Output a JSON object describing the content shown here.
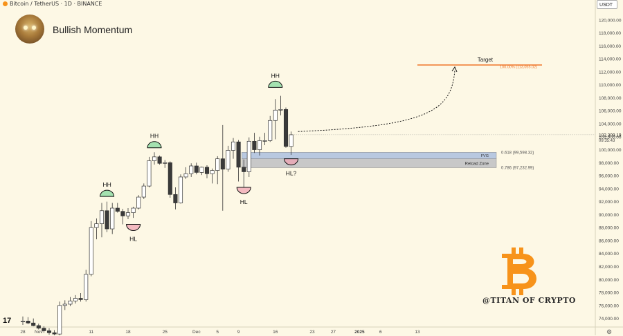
{
  "header": {
    "symbol": "Bitcoin / TetherUS · 1D · BINANCE",
    "currency_button": "USDT"
  },
  "profile": {
    "name": "Bullish Momentum"
  },
  "watermark": "@TITAN OF CRYPTO",
  "colors": {
    "background": "#fdf8e5",
    "candle_up": "#ffffff",
    "candle_down": "#3a3a3a",
    "target_line": "#f0762a",
    "fvg_zone": "#b8c8e0",
    "reload_zone": "#c8c8c8",
    "hh_arc": "#7ed89a",
    "hl_arc": "#f0a0b0",
    "bitcoin_logo": "#f7931a"
  },
  "chart_data": {
    "type": "candlestick",
    "yaxis": {
      "min": 73000,
      "max": 122000,
      "ticks": [
        "120,000.00",
        "118,000.00",
        "116,000.00",
        "114,000.00",
        "112,000.00",
        "110,000.00",
        "108,000.00",
        "106,000.00",
        "104,000.00",
        "102,000.00",
        "100,000.00",
        "98,000.00",
        "96,000.00",
        "94,000.00",
        "92,000.00",
        "90,000.00",
        "88,000.00",
        "86,000.00",
        "84,000.00",
        "82,000.00",
        "80,000.00",
        "78,000.00",
        "76,000.00",
        "74,000.00"
      ],
      "current_price": "102,309.19",
      "countdown": "09:35:43"
    },
    "xaxis": {
      "ticks": [
        {
          "label": "28",
          "i": 0
        },
        {
          "label": "Nov",
          "i": 3
        },
        {
          "label": "5",
          "i": 7
        },
        {
          "label": "11",
          "i": 13
        },
        {
          "label": "18",
          "i": 20
        },
        {
          "label": "25",
          "i": 27
        },
        {
          "label": "Dec",
          "i": 33
        },
        {
          "label": "5",
          "i": 37
        },
        {
          "label": "9",
          "i": 41
        },
        {
          "label": "16",
          "i": 48
        },
        {
          "label": "23",
          "i": 55
        },
        {
          "label": "27",
          "i": 59
        },
        {
          "label": "2025",
          "i": 64
        },
        {
          "label": "6",
          "i": 68
        },
        {
          "label": "13",
          "i": 75
        }
      ]
    },
    "candles": [
      {
        "o": 73500,
        "h": 74300,
        "l": 73000,
        "c": 73600
      },
      {
        "o": 73600,
        "h": 74200,
        "l": 73100,
        "c": 73300
      },
      {
        "o": 73300,
        "h": 74000,
        "l": 72800,
        "c": 72900
      },
      {
        "o": 72900,
        "h": 73200,
        "l": 72300,
        "c": 72500
      },
      {
        "o": 72500,
        "h": 72800,
        "l": 71800,
        "c": 72100
      },
      {
        "o": 72100,
        "h": 72500,
        "l": 71500,
        "c": 71800
      },
      {
        "o": 71800,
        "h": 72200,
        "l": 71300,
        "c": 71600
      },
      {
        "o": 71600,
        "h": 76600,
        "l": 71400,
        "c": 76000
      },
      {
        "o": 76000,
        "h": 76800,
        "l": 75300,
        "c": 76200
      },
      {
        "o": 76200,
        "h": 77300,
        "l": 75900,
        "c": 76700
      },
      {
        "o": 76700,
        "h": 77600,
        "l": 76300,
        "c": 77100
      },
      {
        "o": 77100,
        "h": 77900,
        "l": 76600,
        "c": 76900
      },
      {
        "o": 76900,
        "h": 81500,
        "l": 76600,
        "c": 80800
      },
      {
        "o": 80800,
        "h": 89000,
        "l": 80500,
        "c": 88000
      },
      {
        "o": 88000,
        "h": 89400,
        "l": 86200,
        "c": 88600
      },
      {
        "o": 88600,
        "h": 91800,
        "l": 86500,
        "c": 90600
      },
      {
        "o": 90600,
        "h": 92000,
        "l": 87300,
        "c": 87800
      },
      {
        "o": 87800,
        "h": 91800,
        "l": 87000,
        "c": 91000
      },
      {
        "o": 91000,
        "h": 91800,
        "l": 90300,
        "c": 90500
      },
      {
        "o": 90500,
        "h": 90900,
        "l": 88500,
        "c": 89800
      },
      {
        "o": 89800,
        "h": 91000,
        "l": 89300,
        "c": 90300
      },
      {
        "o": 90300,
        "h": 91200,
        "l": 89500,
        "c": 91000
      },
      {
        "o": 91000,
        "h": 93000,
        "l": 90800,
        "c": 92700
      },
      {
        "o": 92700,
        "h": 94800,
        "l": 92400,
        "c": 94400
      },
      {
        "o": 94400,
        "h": 98900,
        "l": 94200,
        "c": 98300
      },
      {
        "o": 98300,
        "h": 99600,
        "l": 97700,
        "c": 98900
      },
      {
        "o": 98900,
        "h": 99100,
        "l": 97700,
        "c": 97900
      },
      {
        "o": 97900,
        "h": 98400,
        "l": 97200,
        "c": 98000
      },
      {
        "o": 98000,
        "h": 98200,
        "l": 92600,
        "c": 93100
      },
      {
        "o": 93100,
        "h": 94200,
        "l": 90800,
        "c": 91800
      },
      {
        "o": 91800,
        "h": 96200,
        "l": 91700,
        "c": 95800
      },
      {
        "o": 95800,
        "h": 97300,
        "l": 95500,
        "c": 96300
      },
      {
        "o": 96300,
        "h": 97900,
        "l": 95800,
        "c": 97500
      },
      {
        "o": 97500,
        "h": 98000,
        "l": 96200,
        "c": 96500
      },
      {
        "o": 96500,
        "h": 97400,
        "l": 96100,
        "c": 97300
      },
      {
        "o": 97300,
        "h": 97600,
        "l": 95600,
        "c": 96300
      },
      {
        "o": 96300,
        "h": 97100,
        "l": 94800,
        "c": 96800
      },
      {
        "o": 96800,
        "h": 99000,
        "l": 94700,
        "c": 98600
      },
      {
        "o": 98600,
        "h": 103800,
        "l": 90600,
        "c": 97000
      },
      {
        "o": 97000,
        "h": 100600,
        "l": 96600,
        "c": 99900
      },
      {
        "o": 99900,
        "h": 101800,
        "l": 98600,
        "c": 101200
      },
      {
        "o": 101200,
        "h": 101500,
        "l": 95100,
        "c": 97300
      },
      {
        "o": 97300,
        "h": 98500,
        "l": 94200,
        "c": 96600
      },
      {
        "o": 96600,
        "h": 101900,
        "l": 95800,
        "c": 101300
      },
      {
        "o": 101300,
        "h": 102600,
        "l": 99500,
        "c": 100000
      },
      {
        "o": 100000,
        "h": 102000,
        "l": 99100,
        "c": 101400
      },
      {
        "o": 101400,
        "h": 102600,
        "l": 100700,
        "c": 101400
      },
      {
        "o": 101400,
        "h": 105200,
        "l": 101200,
        "c": 104500
      },
      {
        "o": 104500,
        "h": 107800,
        "l": 101600,
        "c": 106100
      },
      {
        "o": 106100,
        "h": 108300,
        "l": 105300,
        "c": 106200
      },
      {
        "o": 106200,
        "h": 106500,
        "l": 100300,
        "c": 100500
      },
      {
        "o": 100500,
        "h": 102800,
        "l": 99200,
        "c": 102300
      }
    ],
    "levels": [
      {
        "name": "Target",
        "value": 113055.02,
        "label": "100.00% (113,055.02)"
      },
      {
        "name": "FVG",
        "top": 99598.32,
        "bottom": 98600,
        "label": "0.618 (99,598.32)"
      },
      {
        "name": "Reload Zone",
        "top": 98600,
        "bottom": 97232.99,
        "label": "0.786 (97,232.99)"
      }
    ],
    "annotations": [
      {
        "text": "HH",
        "i": 16,
        "price": 92800,
        "pos": "above"
      },
      {
        "text": "HL",
        "i": 21,
        "price": 88500,
        "pos": "below"
      },
      {
        "text": "HH",
        "i": 25,
        "price": 100300,
        "pos": "above"
      },
      {
        "text": "HL",
        "i": 42,
        "price": 94200,
        "pos": "below"
      },
      {
        "text": "HH",
        "i": 48,
        "price": 109600,
        "pos": "above"
      },
      {
        "text": "HL?",
        "i": 51,
        "price": 98600,
        "pos": "below"
      }
    ]
  }
}
